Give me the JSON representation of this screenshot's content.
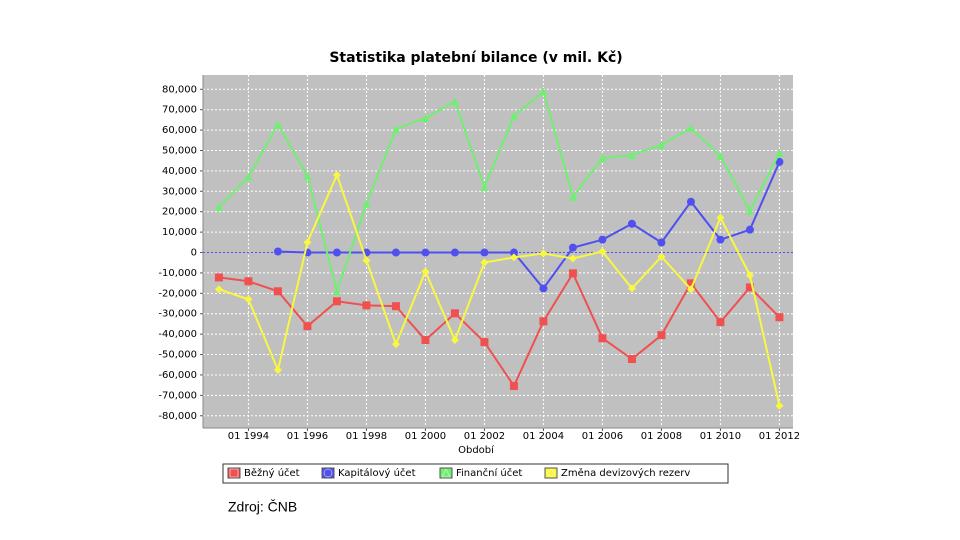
{
  "chart_data": {
    "type": "line",
    "title": "Statistika platební bilance  (v mil. Kč)",
    "x_label": "Období",
    "source": "Zdroj: ČNB",
    "x": [
      1993,
      1994,
      1995,
      1996,
      1997,
      1998,
      1999,
      2000,
      2001,
      2002,
      2003,
      2004,
      2005,
      2006,
      2007,
      2008,
      2009,
      2010,
      2011,
      2012
    ],
    "xlim": [
      1992.46,
      2012.46
    ],
    "xticks": [
      {
        "value": 1994,
        "label": "01 1994"
      },
      {
        "value": 1996,
        "label": "01 1996"
      },
      {
        "value": 1998,
        "label": "01 1998"
      },
      {
        "value": 2000,
        "label": "01 2000"
      },
      {
        "value": 2002,
        "label": "01 2002"
      },
      {
        "value": 2004,
        "label": "01 2004"
      },
      {
        "value": 2006,
        "label": "01 2006"
      },
      {
        "value": 2008,
        "label": "01 2008"
      },
      {
        "value": 2010,
        "label": "01 2010"
      },
      {
        "value": 2012,
        "label": "01 2012"
      }
    ],
    "ylim": [
      -86000,
      87000
    ],
    "yticks": [
      {
        "value": 80000,
        "label": "80,000"
      },
      {
        "value": 70000,
        "label": "70,000"
      },
      {
        "value": 60000,
        "label": "60,000"
      },
      {
        "value": 50000,
        "label": "50,000"
      },
      {
        "value": 40000,
        "label": "40,000"
      },
      {
        "value": 30000,
        "label": "30,000"
      },
      {
        "value": 20000,
        "label": "20,000"
      },
      {
        "value": 10000,
        "label": "10,000"
      },
      0,
      {
        "value": -10000,
        "label": "-10,000"
      },
      {
        "value": -20000,
        "label": "-20,000"
      },
      {
        "value": -30000,
        "label": "-30,000"
      },
      {
        "value": -40000,
        "label": "-40,000"
      },
      {
        "value": -50000,
        "label": "-50,000"
      },
      {
        "value": -60000,
        "label": "-60,000"
      },
      {
        "value": -70000,
        "label": "-70,000"
      },
      {
        "value": -80000,
        "label": "-80,000"
      }
    ],
    "grid": true,
    "series": [
      {
        "name": "Běžný účet",
        "color": "#f05050",
        "marker": "square",
        "values": [
          -12200,
          -14100,
          -19000,
          -36100,
          -23900,
          -25900,
          -26300,
          -42900,
          -29800,
          -43900,
          -65400,
          -33700,
          -10200,
          -42000,
          -52200,
          -40500,
          -15100,
          -34100,
          -17100,
          -31700
        ]
      },
      {
        "name": "Kapitálový účet",
        "color": "#5050f0",
        "marker": "circle",
        "values": [
          null,
          null,
          500,
          0,
          0,
          0,
          0,
          0,
          0,
          0,
          0,
          -17600,
          2400,
          6300,
          14100,
          4900,
          24900,
          6300,
          11200,
          44400
        ]
      },
      {
        "name": "Finanční účet",
        "color": "#70f070",
        "marker": "triangle",
        "values": [
          22400,
          37100,
          62900,
          37600,
          -19000,
          23900,
          60500,
          65900,
          74100,
          32200,
          66800,
          79000,
          27300,
          46300,
          47800,
          52700,
          61000,
          47300,
          20500,
          48800
        ]
      },
      {
        "name": "Změna devizových rezerv",
        "color": "#f8f840",
        "marker": "diamond",
        "values": [
          -18000,
          -22900,
          -57600,
          5000,
          38000,
          -3900,
          -44900,
          -9300,
          -42900,
          -4900,
          -2400,
          -500,
          -2900,
          500,
          -17600,
          -2000,
          -18000,
          17100,
          -11200,
          -75100
        ]
      }
    ]
  }
}
